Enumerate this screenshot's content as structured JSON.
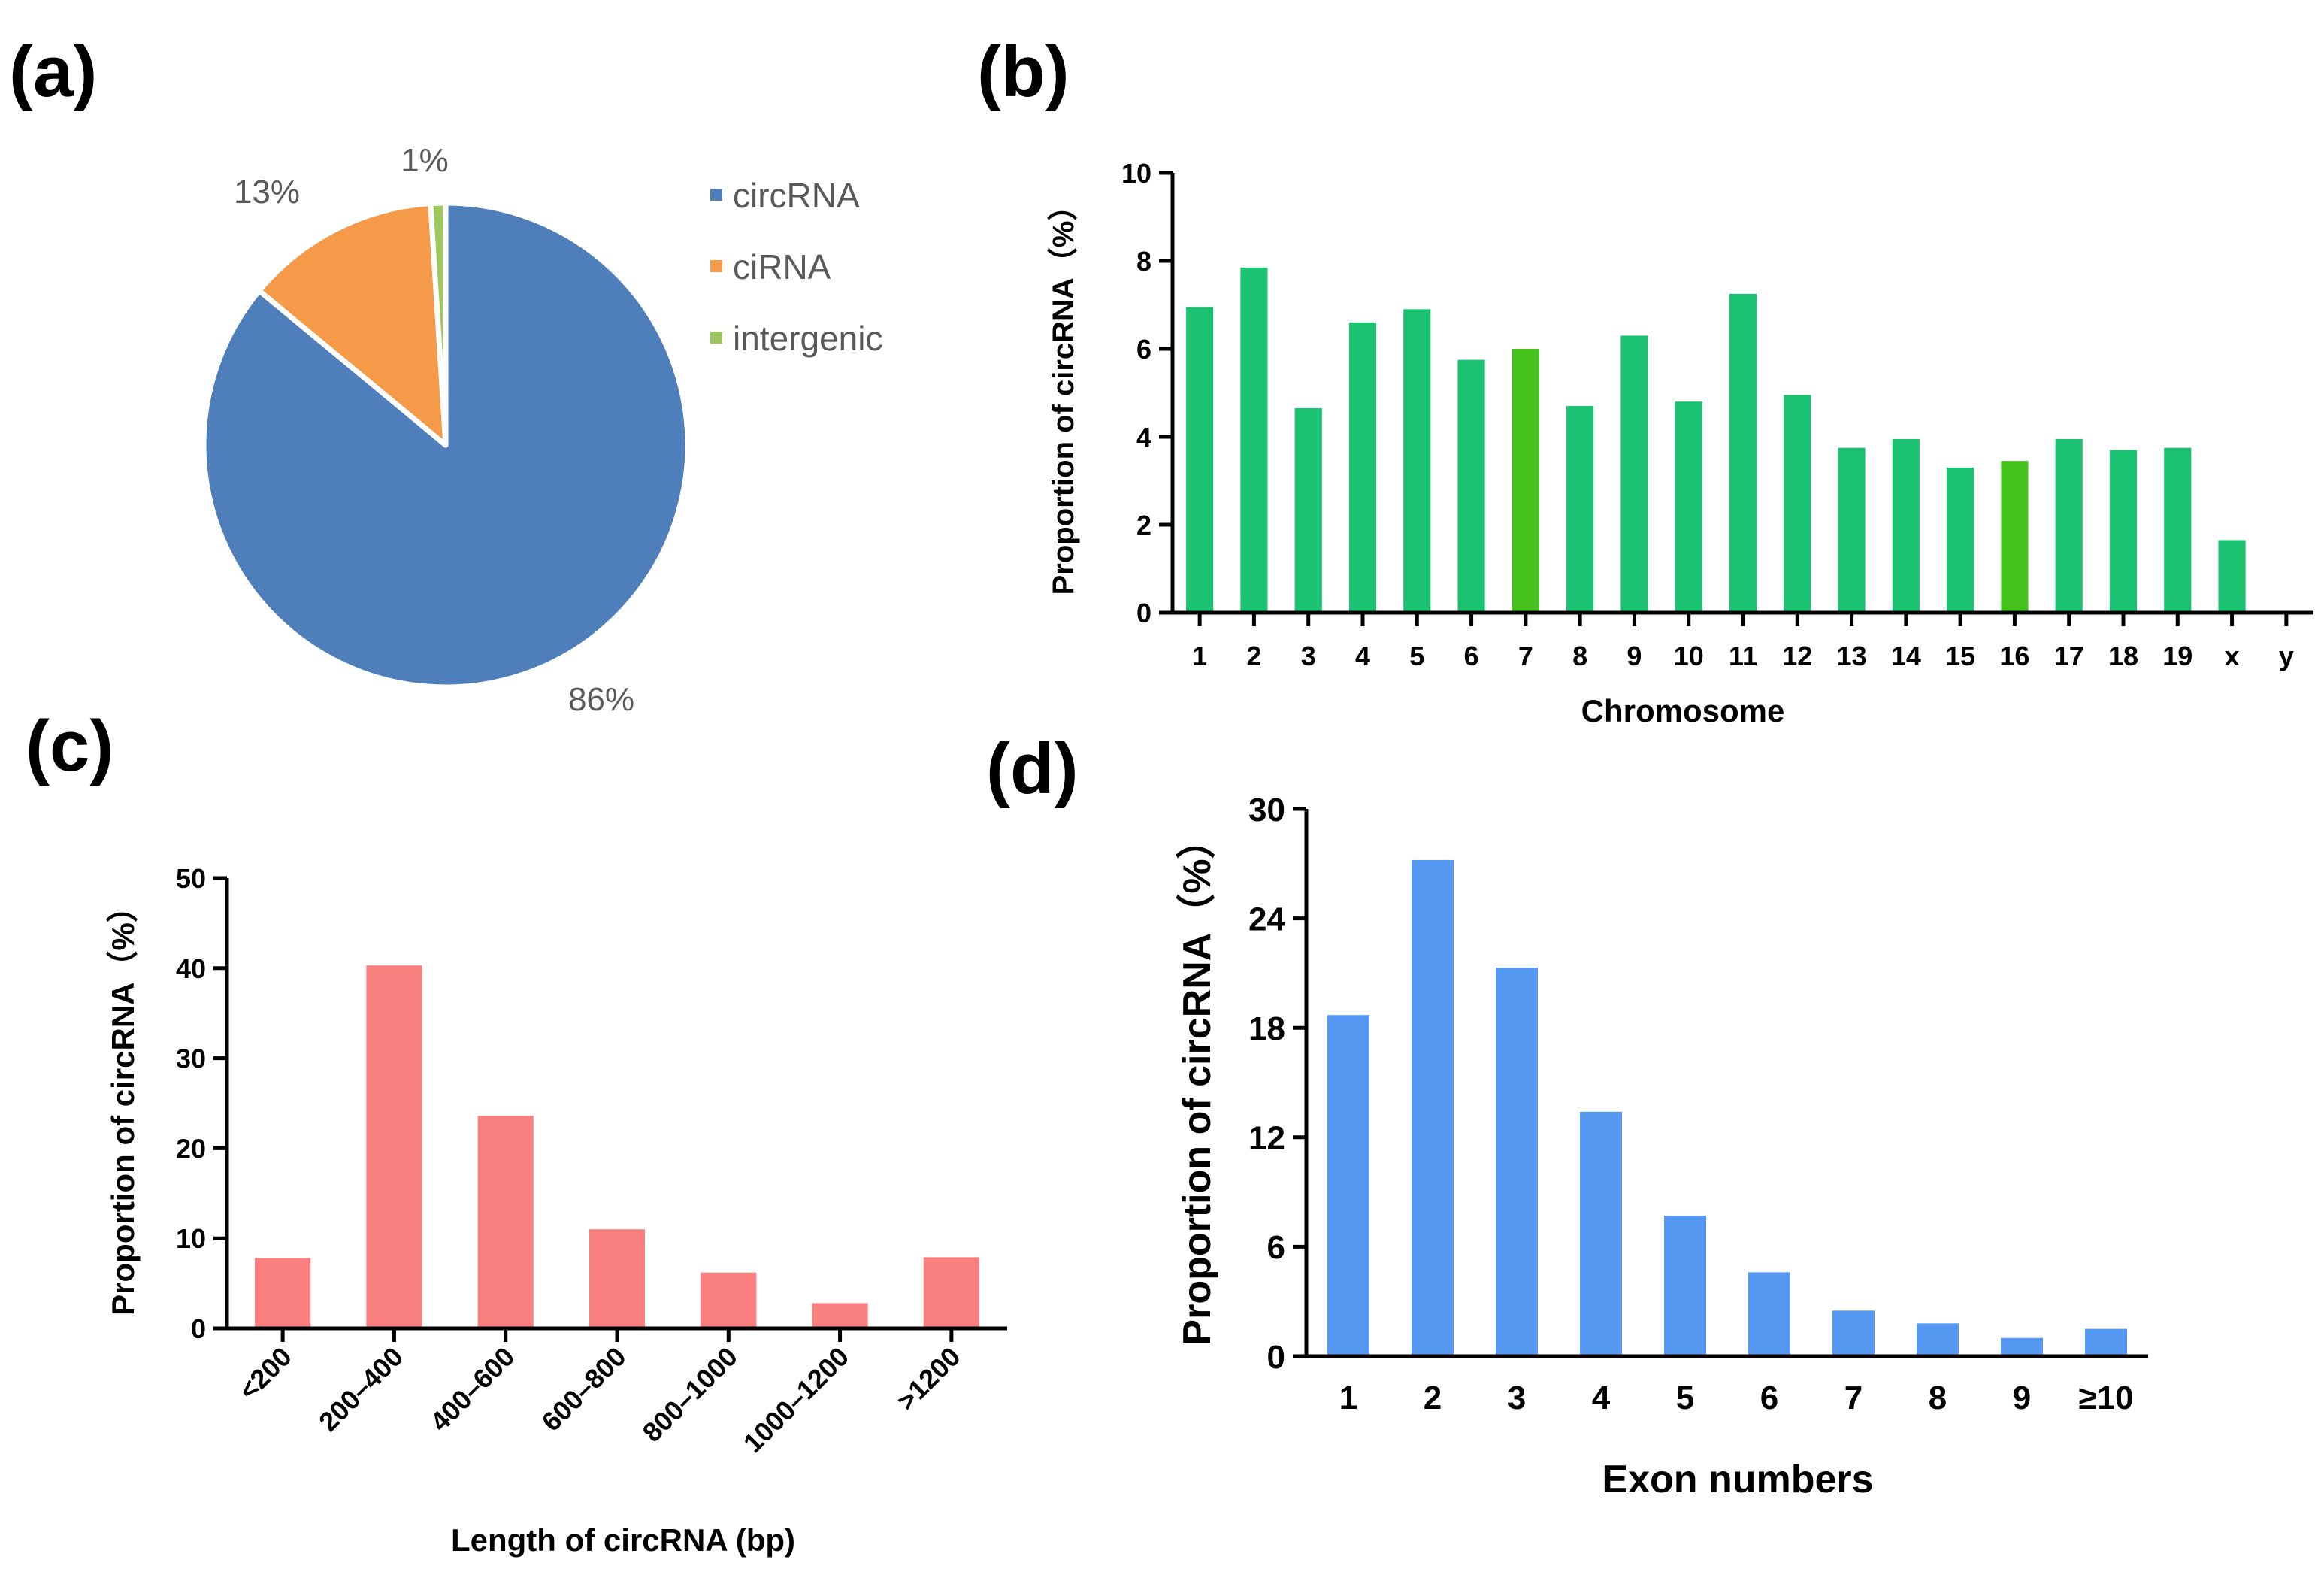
{
  "panels": {
    "a": "(a)",
    "b": "(b)",
    "c": "(c)",
    "d": "(d)"
  },
  "chart_data": [
    {
      "id": "a",
      "type": "pie",
      "labels": [
        "circRNA",
        "ciRNA",
        "intergenic"
      ],
      "values": [
        86,
        13,
        1
      ],
      "value_labels": [
        "86%",
        "13%",
        "1%"
      ],
      "colors": [
        "#4F7FBA",
        "#F59A48",
        "#9DC75C"
      ],
      "legend": "right"
    },
    {
      "id": "b",
      "type": "bar",
      "categories": [
        "1",
        "2",
        "3",
        "4",
        "5",
        "6",
        "7",
        "8",
        "9",
        "10",
        "11",
        "12",
        "13",
        "14",
        "15",
        "16",
        "17",
        "18",
        "19",
        "x",
        "y"
      ],
      "values": [
        6.95,
        7.85,
        4.65,
        6.6,
        6.9,
        5.75,
        6.0,
        4.7,
        6.3,
        4.8,
        7.25,
        4.95,
        3.75,
        3.95,
        3.3,
        3.45,
        3.95,
        3.7,
        3.75,
        1.65,
        0
      ],
      "xlabel": "Chromosome",
      "ylabel": "Proportion of circRNA（%）",
      "ylim": [
        0,
        10
      ],
      "yticks": [
        0,
        2,
        4,
        6,
        8,
        10
      ],
      "color": "#1BC271",
      "highlight_color": "#45C21B"
    },
    {
      "id": "c",
      "type": "bar",
      "categories": [
        "<200",
        "200–400",
        "400–600",
        "600–800",
        "800–1000",
        "1000–1200",
        ">1200"
      ],
      "values": [
        7.8,
        40.3,
        23.6,
        11.0,
        6.2,
        2.8,
        7.9
      ],
      "xlabel": "Length of circRNA (bp)",
      "ylabel": "Proportion of circRNA（%）",
      "ylim": [
        0,
        50
      ],
      "yticks": [
        0,
        10,
        20,
        30,
        40,
        50
      ],
      "color": "#FA7F7F"
    },
    {
      "id": "d",
      "type": "bar",
      "categories": [
        "1",
        "2",
        "3",
        "4",
        "5",
        "6",
        "7",
        "8",
        "9",
        "≥10"
      ],
      "values": [
        18.7,
        27.2,
        21.3,
        13.4,
        7.7,
        4.6,
        2.5,
        1.8,
        1.0,
        1.5
      ],
      "xlabel": "Exon numbers",
      "ylabel": "Proportion of circRNA（%）",
      "ylim": [
        0,
        30
      ],
      "yticks": [
        0,
        6,
        12,
        18,
        24,
        30
      ],
      "color": "#5599F2"
    }
  ]
}
